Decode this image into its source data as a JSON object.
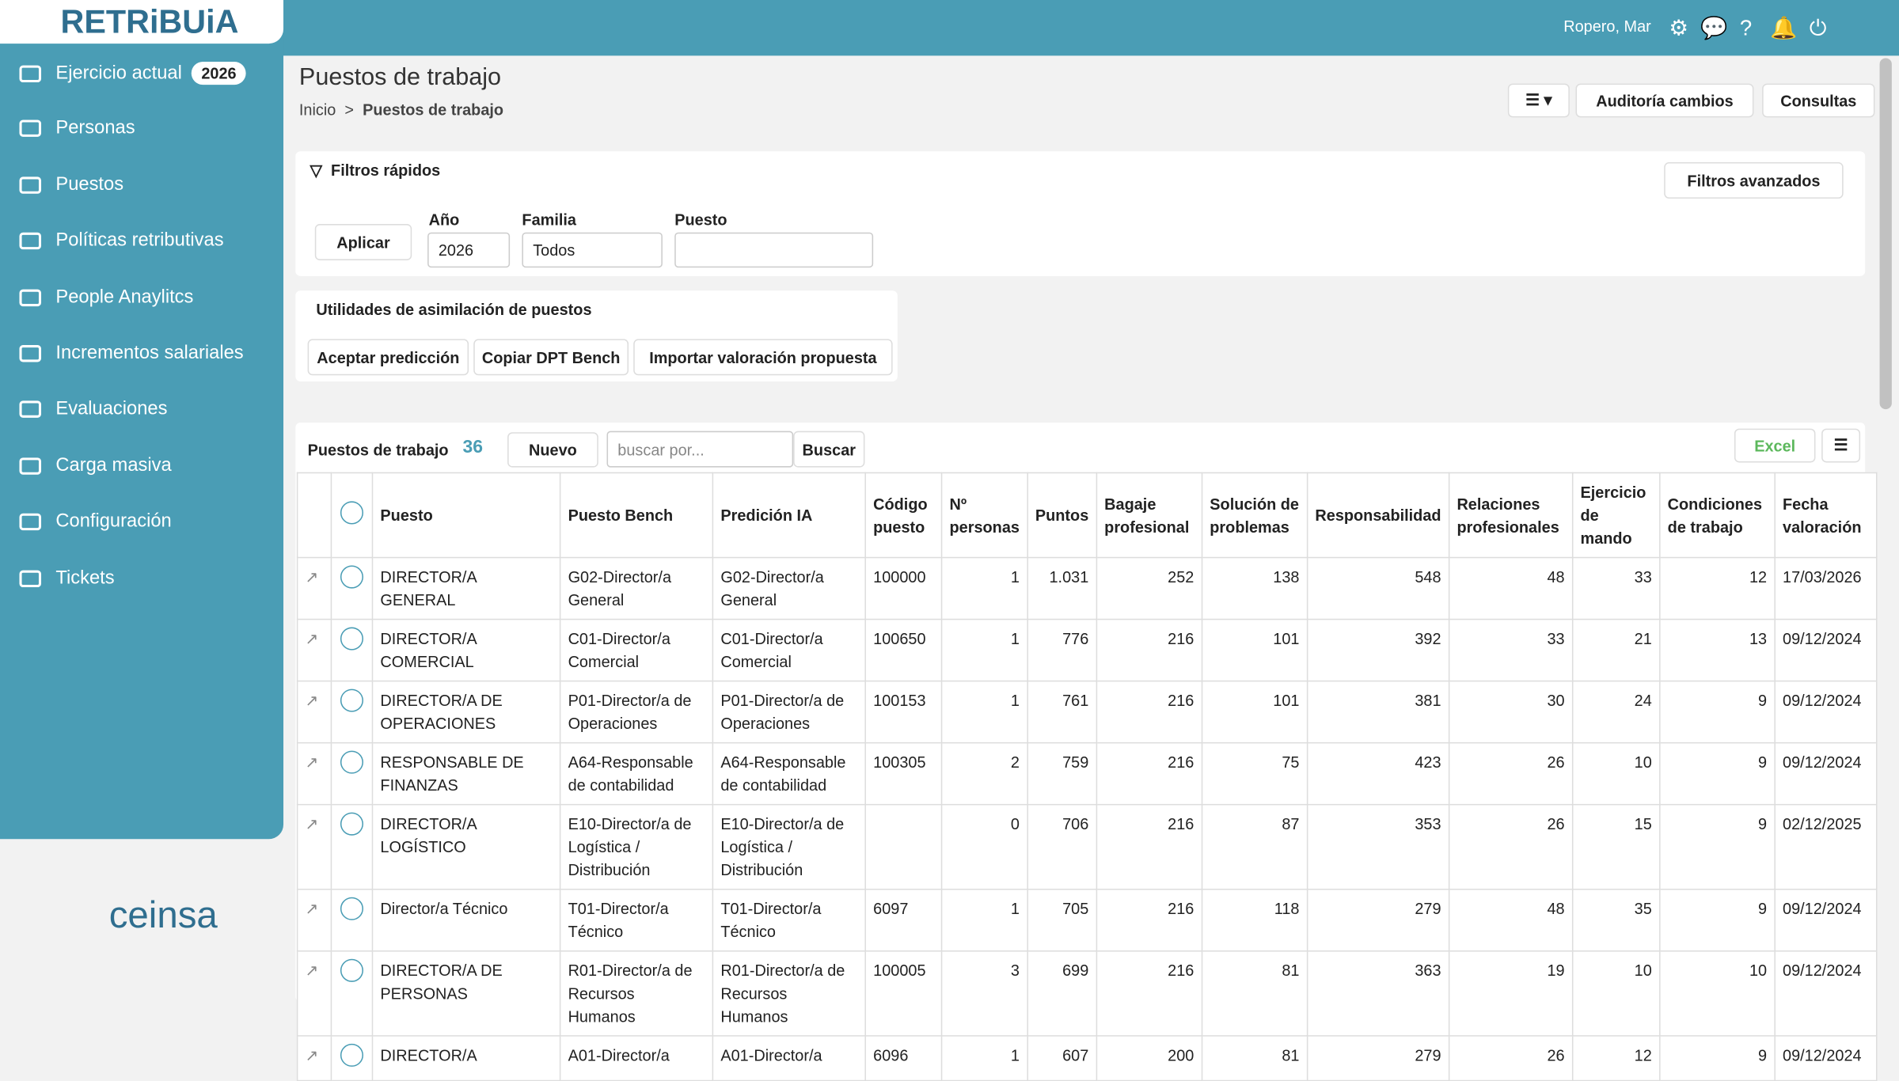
{
  "header": {
    "logo": "RETRiBUiA",
    "user": "Ropero, Mar"
  },
  "sidebar": {
    "items": [
      "Ejercicio actual",
      "Personas",
      "Puestos",
      "Políticas retributivas",
      "People Anaylitcs",
      "Incrementos salariales",
      "Evaluaciones",
      "Carga masiva",
      "Configuración",
      "Tickets"
    ],
    "year_badge": "2026",
    "footer_logo": "ceinsa"
  },
  "page": {
    "title": "Puestos de trabajo",
    "breadcrumb": [
      "Inicio",
      ">",
      "Puestos de trabajo"
    ],
    "buttons": [
      "Auditoría cambios",
      "Consultas"
    ]
  },
  "filters": {
    "title": "Filtros rápidos",
    "advanced": "Filtros avanzados",
    "apply": "Aplicar",
    "year_label": "Año",
    "year_value": "2026",
    "family_label": "Familia",
    "family_value": "Todos",
    "job_label": "Puesto"
  },
  "utilities": {
    "title": "Utilidades de asimilación de puestos",
    "buttons": [
      "Aceptar predicción",
      "Copiar DPT Bench",
      "Importar valoración propuesta"
    ]
  },
  "table": {
    "title": "Puestos de trabajo",
    "count": "36",
    "new": "Nuevo",
    "search_placeholder": "buscar por...",
    "search": "Buscar",
    "excel": "Excel",
    "columns": [
      "Puesto",
      "Puesto Bench",
      "Predición IA",
      "Código puesto",
      "Nº personas",
      "Puntos",
      "Bagaje profesional",
      "Solución de problemas",
      "Responsabilidad",
      "Relaciones profesionales",
      "Ejercicio de mando",
      "Condiciones de trabajo",
      "Fecha valoración"
    ],
    "rows": [
      [
        "DIRECTOR/A GENERAL",
        "G02-Director/a General",
        "G02-Director/a General",
        "100000",
        "1",
        "1.031",
        "252",
        "138",
        "548",
        "48",
        "33",
        "12",
        "17/03/2026"
      ],
      [
        "DIRECTOR/A COMERCIAL",
        "C01-Director/a Comercial",
        "C01-Director/a Comercial",
        "100650",
        "1",
        "776",
        "216",
        "101",
        "392",
        "33",
        "21",
        "13",
        "09/12/2024"
      ],
      [
        "DIRECTOR/A DE OPERACIONES",
        "P01-Director/a de Operaciones",
        "P01-Director/a de Operaciones",
        "100153",
        "1",
        "761",
        "216",
        "101",
        "381",
        "30",
        "24",
        "9",
        "09/12/2024"
      ],
      [
        "RESPONSABLE DE FINANZAS",
        "A64-Responsable de contabilidad",
        "A64-Responsable de contabilidad",
        "100305",
        "2",
        "759",
        "216",
        "75",
        "423",
        "26",
        "10",
        "9",
        "09/12/2024"
      ],
      [
        "DIRECTOR/A LOGÍSTICO",
        "E10-Director/a de Logística / Distribución",
        "E10-Director/a de Logística / Distribución",
        null,
        "0",
        "706",
        "216",
        "87",
        "353",
        "26",
        "15",
        "9",
        "02/12/2025"
      ],
      [
        "Director/a Técnico",
        "T01-Director/a Técnico",
        "T01-Director/a Técnico",
        "6097",
        "1",
        "705",
        "216",
        "118",
        "279",
        "48",
        "35",
        "9",
        "09/12/2024"
      ],
      [
        "DIRECTOR/A DE PERSONAS",
        "R01-Director/a de Recursos Humanos",
        "R01-Director/a de Recursos Humanos",
        "100005",
        "3",
        "699",
        "216",
        "81",
        "363",
        "19",
        "10",
        "10",
        "09/12/2024"
      ],
      [
        "DIRECTOR/A",
        "A01-Director/a",
        "A01-Director/a",
        "6096",
        "1",
        "607",
        "200",
        "81",
        "279",
        "26",
        "12",
        "9",
        "09/12/2024"
      ]
    ]
  }
}
